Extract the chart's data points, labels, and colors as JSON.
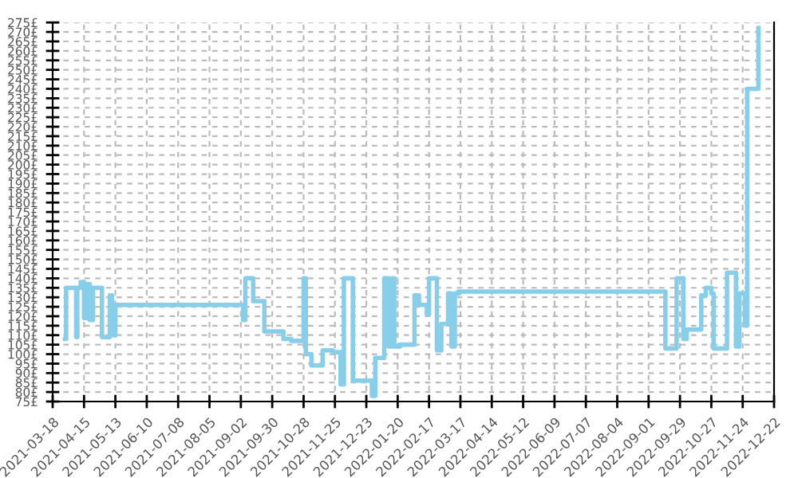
{
  "chart_data": {
    "type": "step",
    "color": "#87ceeb",
    "grid": true,
    "line_style": "solid",
    "marker": "none",
    "x": [
      "2021-03-29",
      "2021-03-30",
      "2021-04-08",
      "2021-04-09",
      "2021-04-12",
      "2021-04-15",
      "2021-04-18",
      "2021-04-20",
      "2021-04-23",
      "2021-05-01",
      "2021-05-08",
      "2021-05-10",
      "2021-05-13",
      "2021-09-04",
      "2021-09-06",
      "2021-09-13",
      "2021-09-23",
      "2021-10-10",
      "2021-10-17",
      "2021-10-28",
      "2021-10-30",
      "2021-11-04",
      "2021-11-14",
      "2021-11-23",
      "2021-11-30",
      "2021-12-03",
      "2021-12-11",
      "2021-12-28",
      "2021-12-31",
      "2022-01-08",
      "2022-01-12",
      "2022-01-15",
      "2022-01-17",
      "2022-01-22",
      "2022-02-04",
      "2022-02-08",
      "2022-02-15",
      "2022-02-17",
      "2022-02-24",
      "2022-02-28",
      "2022-03-06",
      "2022-03-09",
      "2022-03-12",
      "2022-03-15",
      "2022-09-16",
      "2022-09-26",
      "2022-10-02",
      "2022-10-05",
      "2022-10-11",
      "2022-10-18",
      "2022-10-22",
      "2022-10-27",
      "2022-10-29",
      "2022-11-10",
      "2022-11-18",
      "2022-11-21",
      "2022-11-26",
      "2022-11-28",
      "2022-12-08"
    ],
    "values": [
      108,
      135,
      109,
      135,
      138,
      119,
      137,
      118,
      135,
      109,
      131,
      110,
      126,
      118,
      140,
      128,
      112,
      108,
      107,
      140,
      100,
      94,
      102,
      101,
      84,
      140,
      86,
      78,
      98,
      140,
      104,
      140,
      104,
      105,
      131,
      126,
      121,
      140,
      102,
      116,
      132,
      104,
      132,
      133,
      103,
      140,
      108,
      113,
      113,
      131,
      135,
      132,
      103,
      143,
      104,
      132,
      115,
      240,
      272
    ],
    "xlim": [
      "2021-03-18",
      "2022-12-22"
    ],
    "xticks": [
      "2021-03-18",
      "2021-04-15",
      "2021-05-13",
      "2021-06-10",
      "2021-07-08",
      "2021-08-05",
      "2021-09-02",
      "2021-09-30",
      "2021-10-28",
      "2021-11-25",
      "2021-12-23",
      "2022-01-20",
      "2022-02-17",
      "2022-03-17",
      "2022-04-14",
      "2022-05-12",
      "2022-06-09",
      "2022-07-07",
      "2022-08-04",
      "2022-09-01",
      "2022-09-29",
      "2022-10-27",
      "2022-11-24",
      "2022-12-22"
    ],
    "ylim": [
      75,
      275
    ],
    "yticks": [
      {
        "value": 75,
        "label": "75£"
      },
      {
        "value": 80,
        "label": "80£"
      },
      {
        "value": 85,
        "label": "85£"
      },
      {
        "value": 90,
        "label": "90£"
      },
      {
        "value": 95,
        "label": "95£"
      },
      {
        "value": 100,
        "label": "100£"
      },
      {
        "value": 105,
        "label": "105£"
      },
      {
        "value": 110,
        "label": "110£"
      },
      {
        "value": 115,
        "label": "115£"
      },
      {
        "value": 120,
        "label": "120£"
      },
      {
        "value": 125,
        "label": "125£"
      },
      {
        "value": 130,
        "label": "130£"
      },
      {
        "value": 135,
        "label": "135£"
      },
      {
        "value": 140,
        "label": "140£"
      },
      {
        "value": 145,
        "label": "145£"
      },
      {
        "value": 150,
        "label": "150£"
      },
      {
        "value": 155,
        "label": "155£"
      },
      {
        "value": 160,
        "label": "160£"
      },
      {
        "value": 165,
        "label": "165£"
      },
      {
        "value": 170,
        "label": "170£"
      },
      {
        "value": 175,
        "label": "175£"
      },
      {
        "value": 180,
        "label": "180£"
      },
      {
        "value": 185,
        "label": "185£"
      },
      {
        "value": 190,
        "label": "190£"
      },
      {
        "value": 195,
        "label": "195£"
      },
      {
        "value": 200,
        "label": "200£"
      },
      {
        "value": 205,
        "label": "205£"
      },
      {
        "value": 210,
        "label": "210£"
      },
      {
        "value": 215,
        "label": "215£"
      },
      {
        "value": 220,
        "label": "220£"
      },
      {
        "value": 225,
        "label": "225£"
      },
      {
        "value": 230,
        "label": "230£"
      },
      {
        "value": 235,
        "label": "235£"
      },
      {
        "value": 240,
        "label": "240£"
      },
      {
        "value": 245,
        "label": "245£"
      },
      {
        "value": 250,
        "label": "250£"
      },
      {
        "value": 255,
        "label": "255£"
      },
      {
        "value": 260,
        "label": "260£"
      },
      {
        "value": 265,
        "label": "265£"
      },
      {
        "value": 270,
        "label": "270£"
      },
      {
        "value": 275,
        "label": "275£"
      }
    ]
  }
}
